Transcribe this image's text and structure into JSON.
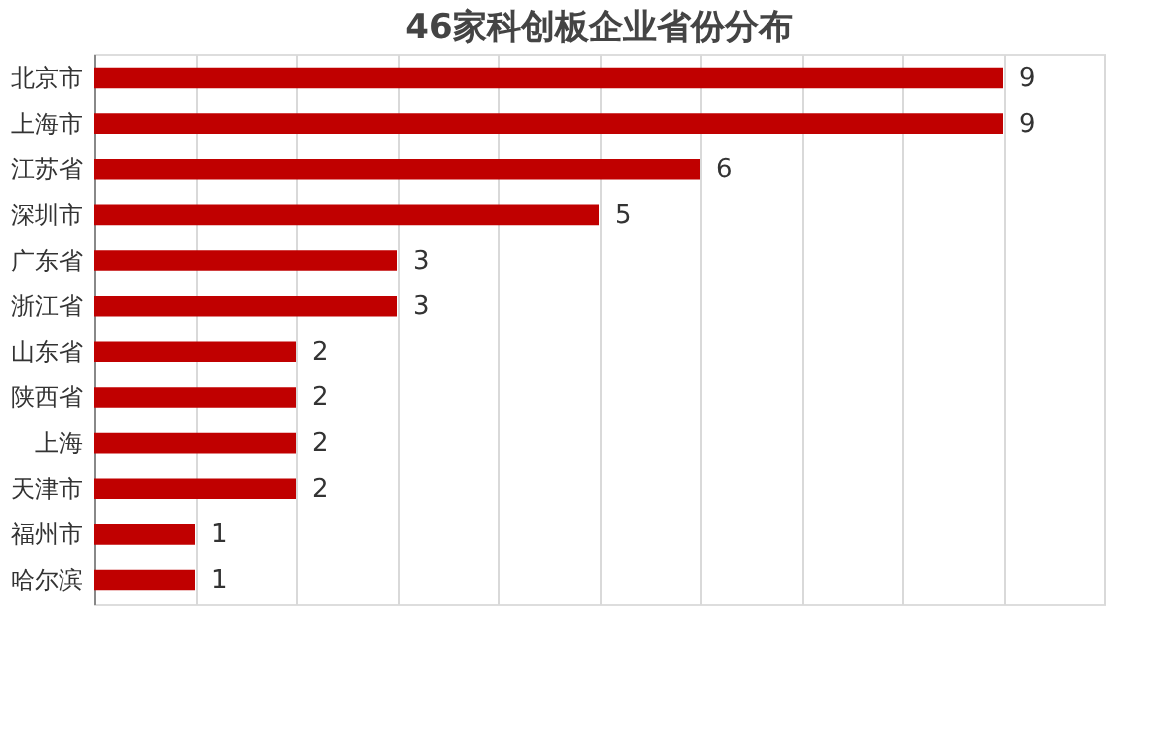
{
  "chart_data": {
    "type": "bar",
    "orientation": "horizontal",
    "title": "46家科创板企业省份分布",
    "categories": [
      "北京市",
      "上海市",
      "江苏省",
      "深圳市",
      "广东省",
      "浙江省",
      "山东省",
      "陕西省",
      "上海",
      "天津市",
      "福州市",
      "哈尔滨"
    ],
    "values": [
      9,
      9,
      6,
      5,
      3,
      3,
      2,
      2,
      2,
      2,
      1,
      1
    ],
    "color": "#c00000",
    "data_labels": true,
    "grid": "x",
    "tick_labels": "y",
    "xlim": [
      0,
      10
    ],
    "xticks": [
      {
        "value": 0,
        "label": null
      },
      {
        "value": 1,
        "label": null
      },
      {
        "value": 2,
        "label": null
      },
      {
        "value": 3,
        "label": null
      },
      {
        "value": 4,
        "label": null
      },
      {
        "value": 5,
        "label": null
      },
      {
        "value": 6,
        "label": null
      },
      {
        "value": 7,
        "label": null
      },
      {
        "value": 8,
        "label": null
      },
      {
        "value": 9,
        "label": null
      },
      {
        "value": 10,
        "label": null
      }
    ]
  }
}
